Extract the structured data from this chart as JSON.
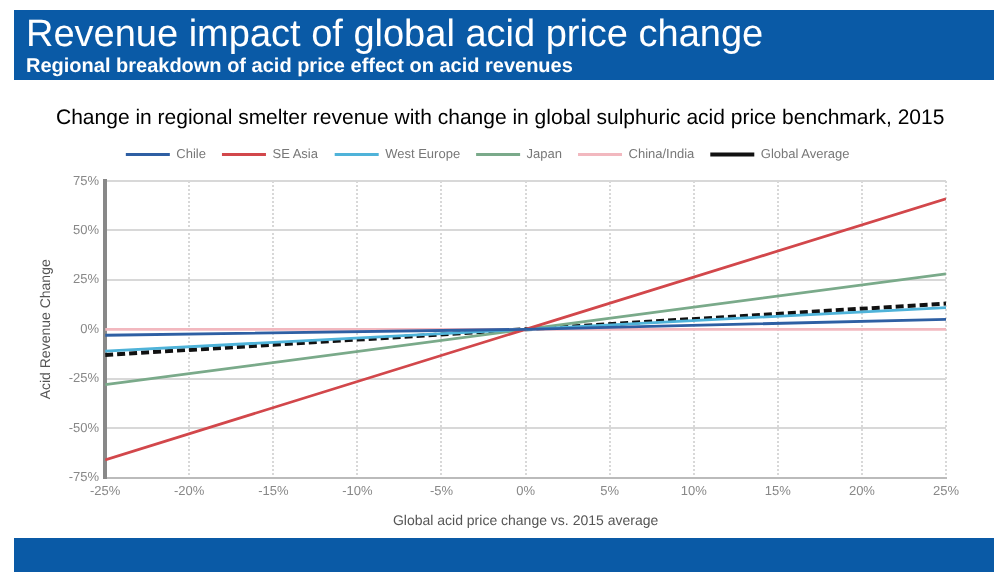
{
  "chart_data": {
    "type": "line",
    "title": "Revenue impact of global acid price change",
    "subtitle": "Regional breakdown of acid price effect on acid revenues",
    "annotations": [
      "Change in regional smelter revenue with change in global sulphuric acid price benchmark, 2015"
    ],
    "xlabel": "Global acid price change vs. 2015 average",
    "ylabel": "Acid Revenue Change",
    "x": [
      -25,
      0,
      25
    ],
    "series": [
      {
        "name": "Chile",
        "color": "#2e5fa3",
        "values": [
          -3,
          0,
          5
        ]
      },
      {
        "name": "SE Asia",
        "color": "#d2474b",
        "values": [
          -66,
          0,
          66
        ]
      },
      {
        "name": "West Europe",
        "color": "#4fb3d9",
        "values": [
          -11,
          0,
          11
        ]
      },
      {
        "name": "Japan",
        "color": "#7aaa8a",
        "values": [
          -28,
          0,
          28
        ]
      },
      {
        "name": "China/India",
        "color": "#f2b8bf",
        "values": [
          0,
          0,
          0
        ]
      },
      {
        "name": "Global Average",
        "color": "#111111",
        "values": [
          -13,
          0,
          13
        ],
        "line_style": "dashed"
      }
    ],
    "xlim": [
      -25,
      25
    ],
    "xticks": [
      {
        "value": -25,
        "label": "-25%"
      },
      {
        "value": -20,
        "label": "-20%"
      },
      {
        "value": -15,
        "label": "-15%"
      },
      {
        "value": -10,
        "label": "-10%"
      },
      {
        "value": -5,
        "label": "-5%"
      },
      {
        "value": 0,
        "label": "0%"
      },
      {
        "value": 5,
        "label": "5%"
      },
      {
        "value": 10,
        "label": "10%"
      },
      {
        "value": 15,
        "label": "15%"
      },
      {
        "value": 20,
        "label": "20%"
      },
      {
        "value": 25,
        "label": "25%"
      }
    ],
    "ylim": [
      -75,
      75
    ],
    "yticks": [
      {
        "value": -75,
        "label": "-75%"
      },
      {
        "value": -50,
        "label": "-50%"
      },
      {
        "value": -25,
        "label": "-25%"
      },
      {
        "value": 0,
        "label": "0%"
      },
      {
        "value": 25,
        "label": "25%"
      },
      {
        "value": 50,
        "label": "50%"
      },
      {
        "value": 75,
        "label": "75%"
      }
    ],
    "grid": true,
    "legend": "top",
    "marker": "none",
    "line_style": "solid"
  }
}
